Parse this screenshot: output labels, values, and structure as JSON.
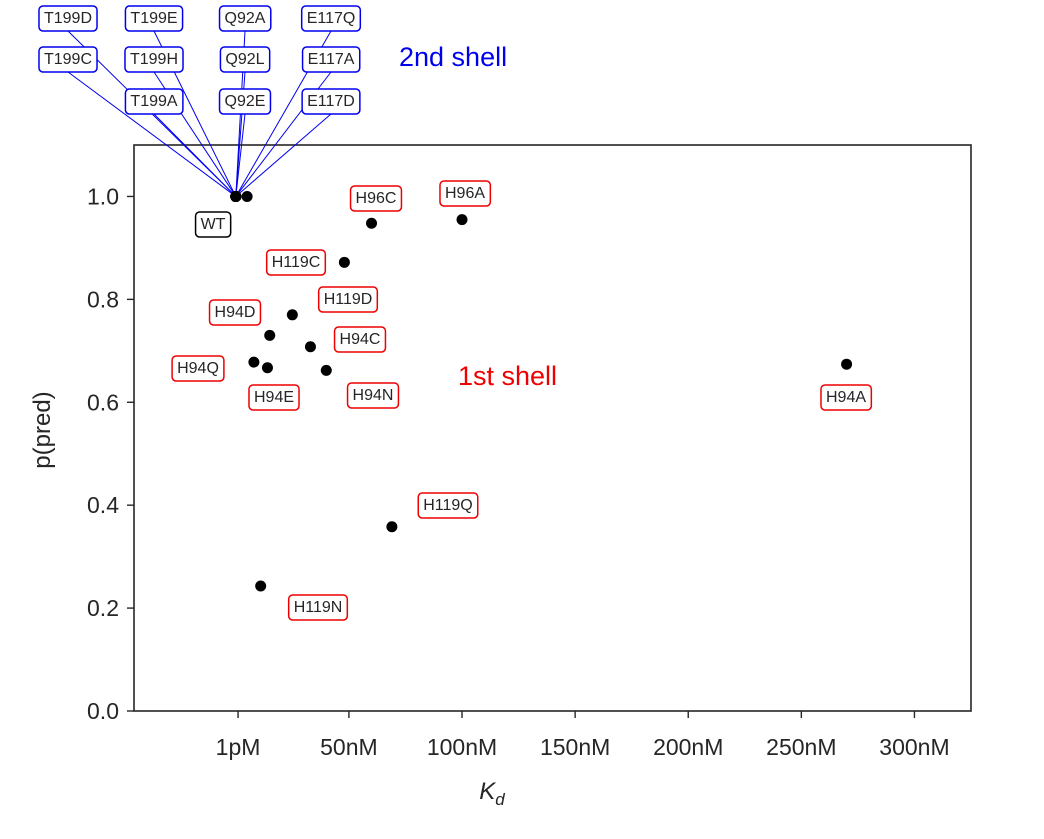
{
  "chart_data": {
    "type": "scatter",
    "ylabel": "p(pred)",
    "xlabel_main": "K",
    "xlabel_sub": "d",
    "xlim": [
      -45,
      325
    ],
    "ylim": [
      0.0,
      1.1
    ],
    "xticks": [
      {
        "value": 1,
        "label": "1pM"
      },
      {
        "value": 50,
        "label": "50nM"
      },
      {
        "value": 100,
        "label": "100nM"
      },
      {
        "value": 150,
        "label": "150nM"
      },
      {
        "value": 200,
        "label": "200nM"
      },
      {
        "value": 250,
        "label": "250nM"
      },
      {
        "value": 300,
        "label": "300nM"
      }
    ],
    "yticks": [
      {
        "value": 0.0,
        "label": "0.0"
      },
      {
        "value": 0.2,
        "label": "0.2"
      },
      {
        "value": 0.4,
        "label": "0.4"
      },
      {
        "value": 0.6,
        "label": "0.6"
      },
      {
        "value": 0.8,
        "label": "0.8"
      },
      {
        "value": 1.0,
        "label": "1.0"
      }
    ],
    "grid": false,
    "groups": [
      {
        "text": "1st shell",
        "color": "#ee0000"
      },
      {
        "text": "2nd shell",
        "color": "#0000ee"
      }
    ],
    "colors": {
      "first_shell": "#ee0000",
      "second_shell": "#0000ee",
      "wild_type": "#000000",
      "point": "#000000"
    },
    "points": [
      {
        "label": "WT",
        "kd": 0.001,
        "p": 1.0,
        "group": "wt"
      },
      {
        "label": "H96C",
        "kd": 60,
        "p": 0.948,
        "group": "first"
      },
      {
        "label": "H96A",
        "kd": 100,
        "p": 0.955,
        "group": "first"
      },
      {
        "label": "H119C",
        "kd": 48,
        "p": 0.872,
        "group": "first"
      },
      {
        "label": "H119D",
        "kd": 25,
        "p": 0.77,
        "group": "first"
      },
      {
        "label": "H94D",
        "kd": 15,
        "p": 0.73,
        "group": "first"
      },
      {
        "label": "H94C",
        "kd": 33,
        "p": 0.708,
        "group": "first"
      },
      {
        "label": "H94Q",
        "kd": 8,
        "p": 0.678,
        "group": "first"
      },
      {
        "label": "H94E",
        "kd": 14,
        "p": 0.667,
        "group": "first"
      },
      {
        "label": "H94N",
        "kd": 40,
        "p": 0.662,
        "group": "first"
      },
      {
        "label": "H94A",
        "kd": 270,
        "p": 0.674,
        "group": "first"
      },
      {
        "label": "H119Q",
        "kd": 69,
        "p": 0.358,
        "group": "first"
      },
      {
        "label": "H119N",
        "kd": 11,
        "p": 0.243,
        "group": "first"
      },
      {
        "label": "T199D",
        "kd": 0.01,
        "p": 1.0,
        "group": "second"
      },
      {
        "label": "T199E",
        "kd": 0.01,
        "p": 1.0,
        "group": "second"
      },
      {
        "label": "Q92A",
        "kd": 0.01,
        "p": 1.0,
        "group": "second"
      },
      {
        "label": "E117Q",
        "kd": 0.01,
        "p": 1.0,
        "group": "second"
      },
      {
        "label": "T199C",
        "kd": 0.01,
        "p": 1.0,
        "group": "second"
      },
      {
        "label": "T199H",
        "kd": 0.01,
        "p": 1.0,
        "group": "second"
      },
      {
        "label": "Q92L",
        "kd": 0.01,
        "p": 1.0,
        "group": "second"
      },
      {
        "label": "E117A",
        "kd": 0.01,
        "p": 1.0,
        "group": "second"
      },
      {
        "label": "T199A",
        "kd": 0.01,
        "p": 1.0,
        "group": "second"
      },
      {
        "label": "Q92E",
        "kd": 0.01,
        "p": 1.0,
        "group": "second"
      },
      {
        "label": "E117D",
        "kd": 0.01,
        "p": 1.0,
        "group": "second"
      },
      {
        "label": "",
        "kd": 5,
        "p": 1.0,
        "group": "unlabeled"
      }
    ]
  }
}
